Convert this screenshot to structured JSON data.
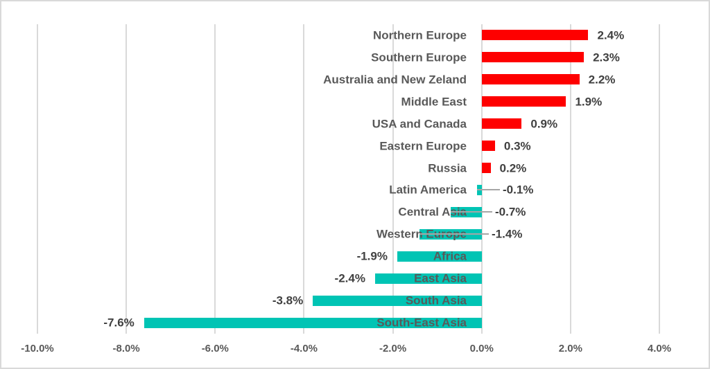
{
  "chart_data": {
    "type": "bar",
    "orientation": "horizontal",
    "title": "",
    "xlabel": "",
    "ylabel": "",
    "xlim": [
      -10,
      4
    ],
    "grid": true,
    "legend": false,
    "colors": {
      "positive_bar": "#fe0000",
      "negative_bar": "#00c4b4",
      "gridline": "#d9d9d9",
      "category_text": "#595959",
      "value_text": "#404040",
      "tick_text": "#595959",
      "leader_line": "#a6a6a6",
      "chart_border": "#d9d9d9",
      "background": "#ffffff"
    },
    "x_axis": {
      "ticks": [
        {
          "value": -10,
          "label": "-10.0%"
        },
        {
          "value": -8,
          "label": "-8.0%"
        },
        {
          "value": -6,
          "label": "-6.0%"
        },
        {
          "value": -4,
          "label": "-4.0%"
        },
        {
          "value": -2,
          "label": "-2.0%"
        },
        {
          "value": 0,
          "label": "0.0%"
        },
        {
          "value": 2,
          "label": "2.0%"
        },
        {
          "value": 4,
          "label": "4.0%"
        }
      ]
    },
    "rows": [
      {
        "category": "Northern Europe",
        "value": 2.4,
        "label": "2.4%"
      },
      {
        "category": "Southern Europe",
        "value": 2.3,
        "label": "2.3%"
      },
      {
        "category": "Australia and New Zeland",
        "value": 2.2,
        "label": "2.2%"
      },
      {
        "category": "Middle East",
        "value": 1.9,
        "label": "1.9%"
      },
      {
        "category": "USA and Canada",
        "value": 0.9,
        "label": "0.9%"
      },
      {
        "category": "Eastern Europe",
        "value": 0.3,
        "label": "0.3%"
      },
      {
        "category": "Russia",
        "value": 0.2,
        "label": "0.2%"
      },
      {
        "category": "Latin America",
        "value": -0.1,
        "label": "-0.1%",
        "label_x": 723
      },
      {
        "category": "Central Asia",
        "value": -0.7,
        "label": "-0.7%",
        "label_x": 712
      },
      {
        "category": "Western Europe",
        "value": -1.4,
        "label": "-1.4%",
        "label_x": 707
      },
      {
        "category": "Africa",
        "value": -1.9,
        "label": "-1.9%"
      },
      {
        "category": "East Asia",
        "value": -2.4,
        "label": "-2.4%"
      },
      {
        "category": "South Asia",
        "value": -3.8,
        "label": "-3.8%"
      },
      {
        "category": "South-East Asia",
        "value": -7.6,
        "label": "-7.6%"
      }
    ]
  }
}
